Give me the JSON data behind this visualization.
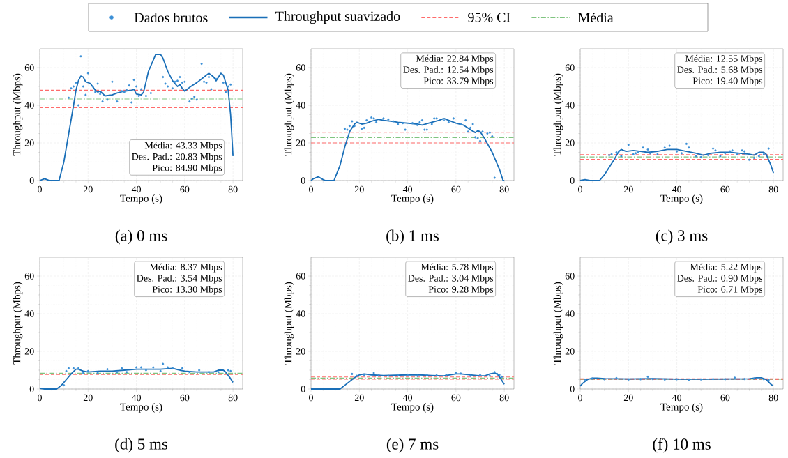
{
  "chart_data": [
    {
      "type": "line",
      "title": "(a) 0 ms",
      "xlabel": "Tempo (s)",
      "ylabel": "Throughput (Mbps)",
      "xlim": [
        0,
        84
      ],
      "ylim": [
        0,
        70
      ],
      "xticks": [
        0,
        20,
        40,
        60,
        80
      ],
      "yticks": [
        0,
        20,
        40,
        60
      ],
      "grid": true,
      "legend": "top",
      "annotations": [
        "Média: 43.33 Mbps",
        "Des. Pad.: 20.83 Mbps",
        "Pico: 84.90 Mbps"
      ],
      "series": [
        {
          "name": "Dados brutos",
          "type": "scatter",
          "marker": "circle",
          "color": "#3b8fd6",
          "x": [
            12,
            13,
            14,
            15,
            16,
            17,
            18,
            19,
            20,
            22,
            23,
            24,
            25,
            26,
            28,
            30,
            32,
            34,
            35,
            36,
            37,
            38,
            39,
            40,
            41,
            42,
            44,
            46,
            51,
            52,
            53,
            55,
            56,
            57,
            58,
            59,
            60,
            62,
            63,
            64,
            65,
            67,
            68,
            69,
            70,
            71,
            73,
            76,
            77,
            78,
            79
          ],
          "values": [
            44,
            49,
            50,
            52,
            40,
            66,
            50,
            45.5,
            57,
            50,
            47,
            51.5,
            46,
            42,
            43,
            52.5,
            42,
            47.5,
            47,
            48,
            50.5,
            41.5,
            53.5,
            50,
            45,
            48.5,
            45,
            46.5,
            55,
            51.5,
            50,
            49,
            52.5,
            53,
            55,
            52,
            52.5,
            42,
            43.5,
            44.5,
            43,
            62,
            52.5,
            52,
            55,
            48.5,
            54,
            52,
            47,
            50,
            51
          ]
        },
        {
          "name": "Throughput suavizado",
          "type": "line",
          "color": "#1a6fb8",
          "x": [
            0,
            1,
            2,
            3,
            4,
            8,
            10,
            12,
            14,
            15,
            16,
            17,
            18,
            19,
            21,
            23,
            24,
            25,
            27,
            30,
            32,
            35,
            38,
            39,
            40,
            42,
            43,
            45,
            47,
            48,
            50,
            51,
            53,
            55,
            57,
            58,
            59,
            60,
            62,
            65,
            68,
            70,
            72,
            73,
            74,
            75,
            76,
            78,
            79,
            80
          ],
          "values": [
            0,
            0.5,
            1,
            0.5,
            0,
            0,
            10,
            25,
            40,
            48,
            53,
            55.5,
            55,
            52.5,
            51.5,
            48,
            47,
            47.5,
            45,
            45.5,
            46.5,
            47.5,
            48,
            48.5,
            46,
            45.5,
            47,
            58,
            64,
            67,
            67,
            65,
            58,
            53,
            50,
            51,
            49,
            47.5,
            49.5,
            52,
            55,
            57,
            55,
            53,
            55,
            57,
            56,
            48,
            35,
            13
          ]
        }
      ],
      "ref_lines": [
        {
          "axis": "y",
          "value": 48,
          "label": "95% CI",
          "color": "#ff6b6b",
          "line_style": "dashed"
        },
        {
          "axis": "y",
          "value": 38.7,
          "color": "#ff6b6b",
          "line_style": "dashed"
        },
        {
          "axis": "y",
          "value": 43.33,
          "label": "Média",
          "color": "#80c480",
          "line_style": "dashdot"
        }
      ]
    },
    {
      "type": "line",
      "title": "(b) 1 ms",
      "xlabel": "Tempo (s)",
      "ylabel": "Throughput (Mbps)",
      "xlim": [
        0,
        84
      ],
      "ylim": [
        0,
        70
      ],
      "xticks": [
        0,
        20,
        40,
        60,
        80
      ],
      "yticks": [
        0,
        20,
        40,
        60
      ],
      "grid": true,
      "annotations": [
        "Média: 22.84 Mbps",
        "Des. Pad.: 12.54 Mbps",
        "Pico: 33.79 Mbps"
      ],
      "series": [
        {
          "type": "scatter",
          "marker": "circle",
          "color": "#3b8fd6",
          "x": [
            14,
            15,
            16,
            17,
            18,
            21,
            22,
            23,
            25,
            26,
            27,
            30,
            32,
            34,
            36,
            38,
            39,
            42,
            44,
            45,
            46,
            47,
            48,
            50,
            51,
            52,
            55,
            57,
            59,
            62,
            64,
            65,
            66,
            67,
            68,
            69,
            70,
            71,
            73,
            74,
            75,
            76
          ],
          "values": [
            27.5,
            27,
            29,
            31.5,
            29,
            27.5,
            28,
            32,
            33.5,
            33,
            31,
            33,
            32.5,
            31.5,
            30,
            30.5,
            27,
            30.5,
            29.5,
            31,
            32,
            27,
            27,
            30,
            33,
            33,
            32,
            31,
            33,
            30,
            32,
            26,
            28,
            30,
            23,
            22.5,
            21,
            26,
            25,
            25.5,
            23.5,
            1.5
          ]
        },
        {
          "type": "line",
          "color": "#1a6fb8",
          "x": [
            0,
            1,
            3,
            5,
            6,
            9.5,
            12,
            14,
            16,
            18,
            19,
            21,
            23,
            25,
            28,
            30,
            33,
            36,
            40,
            44,
            46,
            50,
            53,
            55,
            57,
            60,
            63,
            66,
            68,
            69,
            70,
            72,
            75,
            78,
            79.5,
            80
          ],
          "values": [
            0,
            1,
            2,
            0.5,
            0,
            0,
            8,
            18,
            26,
            30,
            31,
            30,
            30.5,
            31.5,
            32.5,
            32,
            31.5,
            31,
            30.5,
            30,
            29.5,
            31,
            32,
            33,
            32,
            30.5,
            29.5,
            27,
            25.5,
            26.5,
            26,
            22,
            15,
            6,
            0,
            0
          ]
        }
      ],
      "ref_lines": [
        {
          "axis": "y",
          "value": 25.7,
          "color": "#ff6b6b",
          "line_style": "dashed"
        },
        {
          "axis": "y",
          "value": 20,
          "color": "#ff6b6b",
          "line_style": "dashed"
        },
        {
          "axis": "y",
          "value": 22.84,
          "color": "#80c480",
          "line_style": "dashdot"
        }
      ]
    },
    {
      "type": "line",
      "title": "(c) 3 ms",
      "xlabel": "Tempo (s)",
      "ylabel": "Throughput (Mbps)",
      "xlim": [
        0,
        84
      ],
      "ylim": [
        0,
        70
      ],
      "xticks": [
        0,
        20,
        40,
        60,
        80
      ],
      "yticks": [
        0,
        20,
        40,
        60
      ],
      "grid": true,
      "annotations": [
        "Média: 12.55 Mbps",
        "Des. Pad.: 5.68 Mbps",
        "Pico: 19.40 Mbps"
      ],
      "series": [
        {
          "type": "scatter",
          "marker": "circle",
          "color": "#3b8fd6",
          "x": [
            12,
            13,
            15,
            16,
            17,
            20,
            22,
            23,
            24,
            26,
            28,
            29,
            32,
            35,
            37,
            40,
            42,
            44,
            45,
            48,
            50,
            53,
            55,
            56,
            58,
            60,
            62,
            63,
            65,
            67,
            68,
            70,
            72,
            74,
            76,
            78
          ],
          "values": [
            13.5,
            14,
            15,
            15.5,
            13,
            19,
            14,
            14.5,
            15,
            17.5,
            16.5,
            14.5,
            14,
            17.5,
            18.5,
            15.5,
            14.5,
            19.5,
            17.5,
            13,
            12.5,
            13.5,
            17,
            16,
            13,
            14.5,
            15.5,
            16,
            14,
            16,
            15.5,
            11,
            12,
            13,
            14,
            17
          ]
        },
        {
          "type": "line",
          "color": "#1a6fb8",
          "x": [
            0,
            2,
            4,
            8,
            10,
            12,
            14,
            16,
            17,
            18,
            19,
            22,
            25,
            28,
            32,
            36,
            40,
            44,
            48,
            51,
            54,
            58,
            62,
            66,
            70,
            72,
            74,
            76,
            77,
            78,
            79,
            80
          ],
          "values": [
            0,
            0.5,
            0,
            0,
            3,
            7,
            11,
            15.5,
            16.5,
            16,
            15.5,
            16,
            15.5,
            15,
            15.5,
            16.5,
            16.5,
            15.5,
            14.5,
            13.5,
            14.5,
            15,
            15,
            14.5,
            14,
            13.5,
            15,
            15,
            14,
            11,
            8,
            4
          ]
        }
      ],
      "ref_lines": [
        {
          "axis": "y",
          "value": 13.8,
          "color": "#ff6b6b",
          "line_style": "dashed"
        },
        {
          "axis": "y",
          "value": 11.3,
          "color": "#ff6b6b",
          "line_style": "dashed"
        },
        {
          "axis": "y",
          "value": 12.55,
          "color": "#80c480",
          "line_style": "dashdot"
        }
      ]
    },
    {
      "type": "line",
      "title": "(d) 5 ms",
      "xlabel": "Tempo (s)",
      "ylabel": "Throughput (Mbps)",
      "xlim": [
        0,
        84
      ],
      "ylim": [
        0,
        70
      ],
      "xticks": [
        0,
        20,
        40,
        60,
        80
      ],
      "yticks": [
        0,
        20,
        40,
        60
      ],
      "grid": true,
      "annotations": [
        "Média: 8.37 Mbps",
        "Des. Pad.: 3.54 Mbps",
        "Pico: 13.30 Mbps"
      ],
      "series": [
        {
          "type": "scatter",
          "marker": "circle",
          "color": "#3b8fd6",
          "x": [
            10,
            11,
            12,
            14,
            16,
            18,
            20,
            24,
            28,
            32,
            34,
            36,
            40,
            42,
            44,
            47,
            50,
            51,
            53,
            55,
            59,
            62,
            66,
            70,
            74,
            78,
            79
          ],
          "values": [
            2,
            9.5,
            11,
            11,
            11,
            8.5,
            9.5,
            8.5,
            10.5,
            9,
            11,
            9,
            11.5,
            11.5,
            10,
            11.5,
            9.5,
            13.3,
            11.5,
            11,
            11,
            9,
            10,
            9,
            9,
            10,
            9.5
          ]
        },
        {
          "type": "line",
          "color": "#1a6fb8",
          "x": [
            0,
            2,
            7,
            9,
            11,
            13,
            15,
            16,
            18,
            20,
            25,
            30,
            35,
            40,
            45,
            50,
            55,
            58,
            60,
            65,
            70,
            72,
            74,
            76,
            77,
            79,
            80
          ],
          "values": [
            0.3,
            0,
            0,
            2,
            5,
            8,
            10.5,
            10.5,
            9.5,
            9,
            9.5,
            9.5,
            10,
            10.5,
            10.5,
            10.5,
            11,
            10,
            9.5,
            9,
            9,
            9,
            10,
            10,
            9,
            5.5,
            3.5
          ]
        }
      ],
      "ref_lines": [
        {
          "axis": "y",
          "value": 9.1,
          "color": "#ff6b6b",
          "line_style": "dashed"
        },
        {
          "axis": "y",
          "value": 7.7,
          "color": "#ff6b6b",
          "line_style": "dashed"
        },
        {
          "axis": "y",
          "value": 8.37,
          "color": "#80c480",
          "line_style": "dashdot"
        }
      ]
    },
    {
      "type": "line",
      "title": "(e) 7 ms",
      "xlabel": "Tempo (s)",
      "ylabel": "Throughput (Mbps)",
      "xlim": [
        0,
        84
      ],
      "ylim": [
        0,
        70
      ],
      "xticks": [
        0,
        20,
        40,
        60,
        80
      ],
      "yticks": [
        0,
        20,
        40,
        60
      ],
      "grid": true,
      "annotations": [
        "Média: 5.78 Mbps",
        "Des. Pad.: 3.04 Mbps",
        "Pico: 9.28 Mbps"
      ],
      "series": [
        {
          "type": "scatter",
          "marker": "circle",
          "color": "#3b8fd6",
          "x": [
            17,
            19,
            22,
            26,
            28,
            32,
            36,
            40,
            44,
            48,
            52,
            56,
            60,
            62,
            66,
            70,
            74,
            76,
            77,
            78,
            79
          ],
          "values": [
            8,
            7,
            7.5,
            8.5,
            7.5,
            7,
            7.5,
            7.5,
            7,
            7.5,
            7.3,
            7.5,
            8.5,
            8.2,
            7,
            7.5,
            7,
            9,
            8,
            7.5,
            6.5
          ]
        },
        {
          "type": "line",
          "color": "#1a6fb8",
          "x": [
            0,
            12,
            14,
            16,
            18,
            20,
            22,
            25,
            30,
            40,
            45,
            50,
            55,
            60,
            62,
            66,
            70,
            72,
            74,
            76,
            77,
            78,
            80
          ],
          "values": [
            0,
            0,
            2,
            4,
            6,
            7.5,
            8,
            7.5,
            7.2,
            7.5,
            7.5,
            7.2,
            7,
            8,
            8,
            7.5,
            7,
            7,
            8,
            8.5,
            8,
            6.5,
            2.5
          ]
        }
      ],
      "ref_lines": [
        {
          "axis": "y",
          "value": 6.4,
          "color": "#ff6b6b",
          "line_style": "dashed"
        },
        {
          "axis": "y",
          "value": 5.2,
          "color": "#ff6b6b",
          "line_style": "dashed"
        },
        {
          "axis": "y",
          "value": 5.78,
          "color": "#80c480",
          "line_style": "dashdot"
        }
      ]
    },
    {
      "type": "line",
      "title": "(f) 10 ms",
      "xlabel": "Tempo (s)",
      "ylabel": "Throughput (Mbps)",
      "xlim": [
        0,
        84
      ],
      "ylim": [
        0,
        70
      ],
      "xticks": [
        0,
        20,
        40,
        60,
        80
      ],
      "yticks": [
        0,
        20,
        40,
        60
      ],
      "grid": true,
      "annotations": [
        "Média: 5.22 Mbps",
        "Des. Pad.: 0.90 Mbps",
        "Pico: 6.71 Mbps"
      ],
      "series": [
        {
          "type": "scatter",
          "marker": "circle",
          "color": "#3b8fd6",
          "x": [
            2,
            5,
            10,
            15,
            20,
            25,
            28,
            30,
            35,
            40,
            45,
            50,
            55,
            60,
            64,
            68,
            72,
            76,
            78
          ],
          "values": [
            5,
            5.5,
            5.2,
            5.8,
            5,
            5.2,
            6.5,
            5.3,
            5,
            5.2,
            4.9,
            5.1,
            5.3,
            5.2,
            6,
            5.3,
            5.5,
            5.2,
            4.8
          ]
        },
        {
          "type": "line",
          "color": "#1a6fb8",
          "x": [
            0,
            1,
            3,
            5,
            7,
            10,
            20,
            30,
            40,
            50,
            60,
            70,
            73,
            75,
            77,
            79,
            80
          ],
          "values": [
            1.5,
            3,
            5,
            5.8,
            5.8,
            5.5,
            5.3,
            5.5,
            5.2,
            5.2,
            5.3,
            5.4,
            6,
            6,
            5,
            2.5,
            1.5
          ]
        }
      ],
      "ref_lines": [
        {
          "axis": "y",
          "value": 5.4,
          "color": "#ff6b6b",
          "line_style": "dashed"
        },
        {
          "axis": "y",
          "value": 5.05,
          "color": "#ff6b6b",
          "line_style": "dashed"
        },
        {
          "axis": "y",
          "value": 5.22,
          "color": "#80c480",
          "line_style": "dashdot"
        }
      ]
    }
  ]
}
